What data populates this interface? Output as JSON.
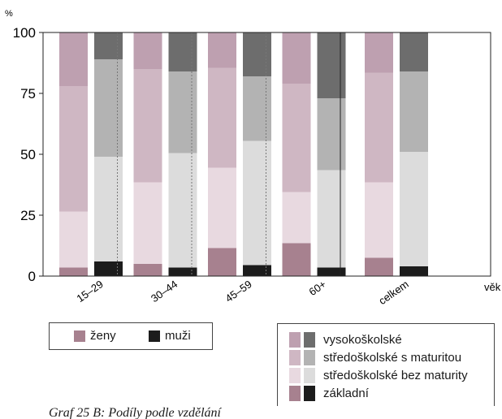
{
  "chart_data": {
    "type": "bar",
    "stacked": true,
    "y_unit": "%",
    "x_axis_label": "věk",
    "ylim": [
      0,
      100
    ],
    "yticks": [
      0,
      25,
      50,
      75,
      100
    ],
    "categories": [
      "15–29",
      "30–44",
      "45–59",
      "60+",
      "celkem"
    ],
    "groups": [
      "ženy",
      "muži"
    ],
    "series": [
      {
        "name": "základní",
        "colors": {
          "ženy": "#a7818f",
          "muži": "#1c1c1c"
        },
        "values": {
          "ženy": [
            3.5,
            5,
            11.5,
            13.5,
            7.5
          ],
          "muži": [
            6,
            3.5,
            4.5,
            3.5,
            4
          ]
        }
      },
      {
        "name": "středoškolské bez maturity",
        "colors": {
          "ženy": "#e8d9e0",
          "muži": "#dcdcdc"
        },
        "values": {
          "ženy": [
            23,
            33.5,
            33,
            21,
            31
          ],
          "muži": [
            43,
            47,
            51,
            40,
            47
          ]
        }
      },
      {
        "name": "středoškolské s maturitou",
        "colors": {
          "ženy": "#cfb7c3",
          "muži": "#b3b3b3"
        },
        "values": {
          "ženy": [
            51.5,
            46.5,
            41,
            44.5,
            45
          ],
          "muži": [
            40,
            33.5,
            26.5,
            29.5,
            33
          ]
        }
      },
      {
        "name": "vysokoškolské",
        "colors": {
          "ženy": "#bea0b0",
          "muži": "#6d6d6d"
        },
        "values": {
          "ženy": [
            22,
            15,
            14.5,
            21,
            16.5
          ],
          "muži": [
            11,
            16,
            18,
            27,
            16
          ]
        }
      }
    ],
    "legend_order": [
      "vysokoškolské",
      "středoškolské s maturitou",
      "středoškolské bez maturity",
      "základní"
    ],
    "grid": "vertical dotted separators between age groups, solid separator before total"
  },
  "legend_sex": [
    {
      "label": "ženy",
      "color": "#a7818f"
    },
    {
      "label": "muži",
      "color": "#1c1c1c"
    }
  ],
  "caption": "Graf 25 B: Podíly podle vzdělání"
}
